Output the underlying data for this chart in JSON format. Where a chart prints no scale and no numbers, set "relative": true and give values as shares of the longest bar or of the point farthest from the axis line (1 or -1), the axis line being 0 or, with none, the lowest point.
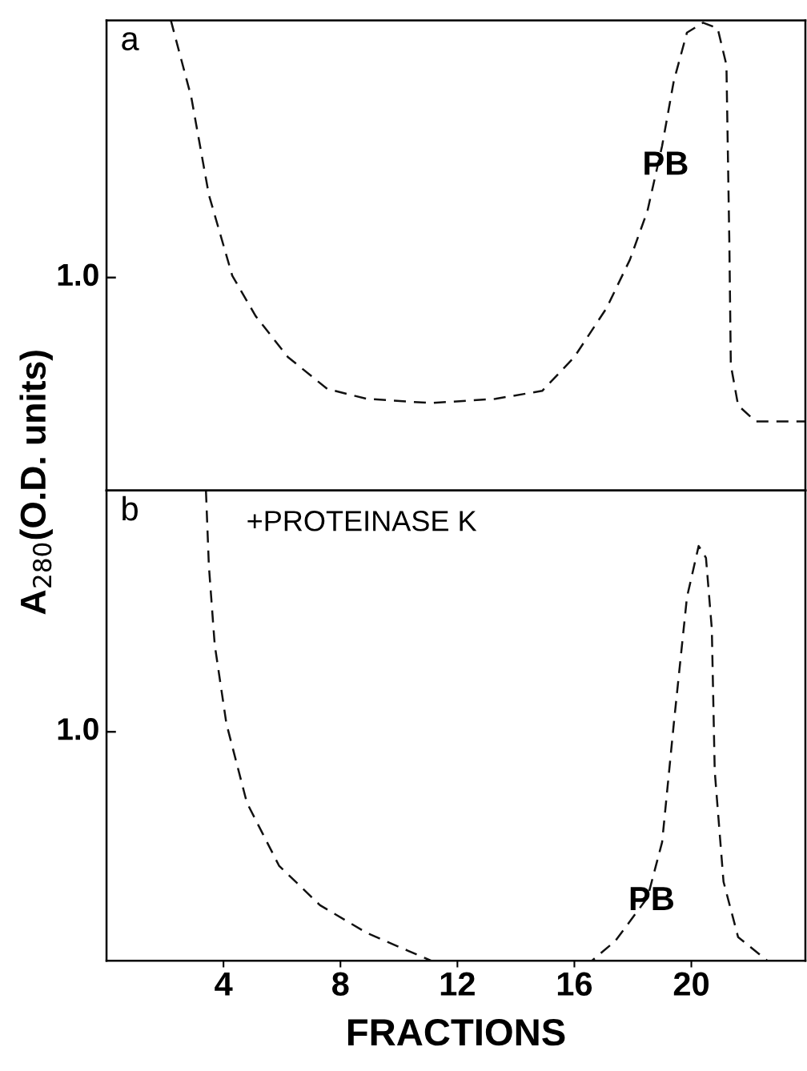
{
  "chart_data": [
    {
      "type": "line",
      "relative": true,
      "ylabel": "A$_{280}$(O.D. units)",
      "xlim": [
        0,
        23.9
      ],
      "tick_labels": false,
      "line_style": "dashed",
      "marker": "none",
      "grid": false,
      "series": [
        {
          "color": "#111111",
          "x": [
            2.2,
            2.9,
            3.5,
            4.3,
            5.1,
            6.2,
            7.55,
            8.9,
            11.1,
            13.3,
            14.9,
            16.0,
            17.1,
            17.9,
            18.5,
            19.0,
            19.4,
            19.85,
            20.4,
            20.9,
            21.2,
            21.3,
            21.35,
            21.6,
            22.2,
            23.9
          ],
          "values": [
            1.0,
            0.836,
            0.629,
            0.457,
            0.371,
            0.284,
            0.216,
            0.195,
            0.186,
            0.195,
            0.212,
            0.284,
            0.388,
            0.491,
            0.595,
            0.733,
            0.871,
            0.974,
            0.995,
            0.983,
            0.905,
            0.526,
            0.267,
            0.181,
            0.147,
            0.147
          ]
        }
      ],
      "annotations": [
        "a",
        "1.0",
        "PB"
      ]
    },
    {
      "type": "line",
      "relative": true,
      "xlabel": "FRACTIONS",
      "xlim": [
        0,
        23.9
      ],
      "xticks": [
        4,
        8,
        12,
        16,
        20
      ],
      "tick_labels": "x",
      "line_style": "dashed",
      "marker": "none",
      "grid": false,
      "series": [
        {
          "color": "#111111",
          "x": [
            3.4,
            3.5,
            3.7,
            4.1,
            4.8,
            5.9,
            7.3,
            8.9,
            11.1,
            16.6,
            17.4,
            18.5,
            19.0,
            19.4,
            19.85,
            20.25,
            20.5,
            20.7,
            20.8,
            21.1,
            21.6,
            22.6,
            23.9
          ],
          "values": [
            1.0,
            0.84,
            0.672,
            0.504,
            0.336,
            0.202,
            0.118,
            0.059,
            0,
            0,
            0.042,
            0.134,
            0.252,
            0.504,
            0.773,
            0.882,
            0.857,
            0.706,
            0.403,
            0.168,
            0.05,
            0,
            0
          ]
        }
      ],
      "annotations": [
        "b",
        "+PROTEINASE K",
        "1.0",
        "PB"
      ]
    }
  ]
}
